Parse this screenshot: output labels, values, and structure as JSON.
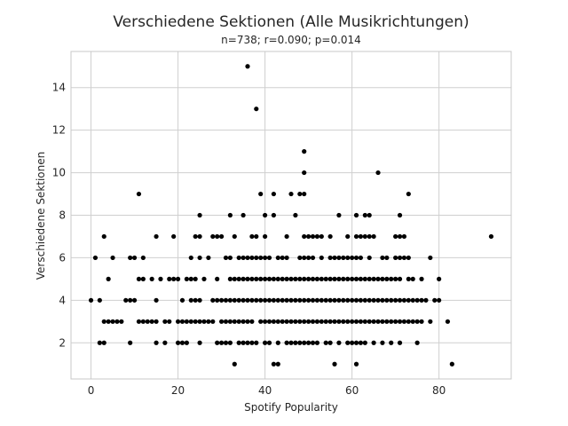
{
  "chart_data": {
    "type": "scatter",
    "title": "Verschiedene Sektionen (Alle Musikrichtungen)",
    "subtitle": "n=738; r=0.090; p=0.014",
    "xlabel": "Spotify Popularity",
    "ylabel": "Verschiedene Sektionen",
    "xlim": [
      -4.6,
      96.6
    ],
    "ylim": [
      0.3,
      15.7
    ],
    "xticks": [
      0,
      20,
      40,
      60,
      80
    ],
    "yticks": [
      2,
      4,
      6,
      8,
      10,
      12,
      14
    ],
    "grid": true,
    "point_color": "#000000",
    "points": [
      [
        0,
        4
      ],
      [
        1,
        6
      ],
      [
        2,
        4
      ],
      [
        2,
        2
      ],
      [
        3,
        2
      ],
      [
        3,
        7
      ],
      [
        3,
        3
      ],
      [
        4,
        5
      ],
      [
        4,
        3
      ],
      [
        5,
        6
      ],
      [
        5,
        3
      ],
      [
        6,
        3
      ],
      [
        7,
        3
      ],
      [
        8,
        4
      ],
      [
        9,
        4
      ],
      [
        9,
        6
      ],
      [
        9,
        2
      ],
      [
        10,
        4
      ],
      [
        10,
        6
      ],
      [
        11,
        9
      ],
      [
        11,
        5
      ],
      [
        11,
        3
      ],
      [
        12,
        6
      ],
      [
        12,
        5
      ],
      [
        12,
        3
      ],
      [
        13,
        3
      ],
      [
        14,
        5
      ],
      [
        14,
        3
      ],
      [
        15,
        7
      ],
      [
        15,
        4
      ],
      [
        15,
        2
      ],
      [
        15,
        3
      ],
      [
        16,
        5
      ],
      [
        17,
        3
      ],
      [
        17,
        2
      ],
      [
        18,
        3
      ],
      [
        18,
        5
      ],
      [
        19,
        7
      ],
      [
        19,
        5
      ],
      [
        20,
        5
      ],
      [
        20,
        3
      ],
      [
        20,
        2
      ],
      [
        21,
        4
      ],
      [
        21,
        3
      ],
      [
        21,
        2
      ],
      [
        22,
        5
      ],
      [
        22,
        3
      ],
      [
        22,
        2
      ],
      [
        23,
        6
      ],
      [
        23,
        5
      ],
      [
        23,
        4
      ],
      [
        23,
        3
      ],
      [
        24,
        7
      ],
      [
        24,
        5
      ],
      [
        24,
        3
      ],
      [
        24,
        4
      ],
      [
        25,
        8
      ],
      [
        25,
        7
      ],
      [
        25,
        6
      ],
      [
        25,
        4
      ],
      [
        25,
        3
      ],
      [
        25,
        2
      ],
      [
        26,
        5
      ],
      [
        26,
        3
      ],
      [
        27,
        6
      ],
      [
        27,
        3
      ],
      [
        28,
        7
      ],
      [
        28,
        4
      ],
      [
        28,
        3
      ],
      [
        29,
        7
      ],
      [
        29,
        5
      ],
      [
        29,
        4
      ],
      [
        29,
        2
      ],
      [
        30,
        7
      ],
      [
        30,
        4
      ],
      [
        30,
        3
      ],
      [
        30,
        2
      ],
      [
        31,
        6
      ],
      [
        31,
        4
      ],
      [
        31,
        3
      ],
      [
        31,
        2
      ],
      [
        32,
        8
      ],
      [
        32,
        6
      ],
      [
        32,
        5
      ],
      [
        32,
        4
      ],
      [
        32,
        3
      ],
      [
        32,
        2
      ],
      [
        33,
        7
      ],
      [
        33,
        5
      ],
      [
        33,
        4
      ],
      [
        33,
        3
      ],
      [
        33,
        1
      ],
      [
        34,
        6
      ],
      [
        34,
        5
      ],
      [
        34,
        4
      ],
      [
        34,
        3
      ],
      [
        34,
        2
      ],
      [
        35,
        8
      ],
      [
        35,
        6
      ],
      [
        35,
        5
      ],
      [
        35,
        4
      ],
      [
        35,
        3
      ],
      [
        35,
        2
      ],
      [
        36,
        15
      ],
      [
        36,
        6
      ],
      [
        36,
        5
      ],
      [
        36,
        4
      ],
      [
        36,
        3
      ],
      [
        36,
        2
      ],
      [
        37,
        7
      ],
      [
        37,
        6
      ],
      [
        37,
        5
      ],
      [
        37,
        4
      ],
      [
        37,
        3
      ],
      [
        37,
        2
      ],
      [
        38,
        13
      ],
      [
        38,
        7
      ],
      [
        38,
        6
      ],
      [
        38,
        5
      ],
      [
        38,
        4
      ],
      [
        38,
        2
      ],
      [
        39,
        9
      ],
      [
        39,
        6
      ],
      [
        39,
        5
      ],
      [
        39,
        4
      ],
      [
        39,
        3
      ],
      [
        40,
        8
      ],
      [
        40,
        7
      ],
      [
        40,
        6
      ],
      [
        40,
        5
      ],
      [
        40,
        4
      ],
      [
        40,
        3
      ],
      [
        40,
        2
      ],
      [
        41,
        6
      ],
      [
        41,
        5
      ],
      [
        41,
        4
      ],
      [
        41,
        3
      ],
      [
        41,
        2
      ],
      [
        42,
        9
      ],
      [
        42,
        8
      ],
      [
        42,
        5
      ],
      [
        42,
        4
      ],
      [
        42,
        3
      ],
      [
        42,
        1
      ],
      [
        43,
        6
      ],
      [
        43,
        5
      ],
      [
        43,
        4
      ],
      [
        43,
        3
      ],
      [
        43,
        2
      ],
      [
        43,
        1
      ],
      [
        44,
        6
      ],
      [
        44,
        5
      ],
      [
        44,
        4
      ],
      [
        44,
        3
      ],
      [
        45,
        7
      ],
      [
        45,
        6
      ],
      [
        45,
        5
      ],
      [
        45,
        4
      ],
      [
        45,
        3
      ],
      [
        45,
        2
      ],
      [
        46,
        9
      ],
      [
        46,
        5
      ],
      [
        46,
        4
      ],
      [
        46,
        3
      ],
      [
        46,
        2
      ],
      [
        47,
        8
      ],
      [
        47,
        5
      ],
      [
        47,
        4
      ],
      [
        47,
        3
      ],
      [
        47,
        2
      ],
      [
        48,
        9
      ],
      [
        48,
        6
      ],
      [
        48,
        5
      ],
      [
        48,
        4
      ],
      [
        48,
        3
      ],
      [
        48,
        2
      ],
      [
        49,
        11
      ],
      [
        49,
        10
      ],
      [
        49,
        9
      ],
      [
        49,
        7
      ],
      [
        49,
        6
      ],
      [
        49,
        5
      ],
      [
        49,
        4
      ],
      [
        49,
        3
      ],
      [
        49,
        2
      ],
      [
        50,
        7
      ],
      [
        50,
        6
      ],
      [
        50,
        5
      ],
      [
        50,
        4
      ],
      [
        50,
        3
      ],
      [
        50,
        2
      ],
      [
        51,
        7
      ],
      [
        51,
        6
      ],
      [
        51,
        5
      ],
      [
        51,
        4
      ],
      [
        51,
        3
      ],
      [
        51,
        2
      ],
      [
        52,
        7
      ],
      [
        52,
        5
      ],
      [
        52,
        4
      ],
      [
        52,
        3
      ],
      [
        52,
        2
      ],
      [
        53,
        7
      ],
      [
        53,
        6
      ],
      [
        53,
        5
      ],
      [
        53,
        4
      ],
      [
        53,
        3
      ],
      [
        54,
        5
      ],
      [
        54,
        4
      ],
      [
        54,
        3
      ],
      [
        54,
        2
      ],
      [
        55,
        7
      ],
      [
        55,
        6
      ],
      [
        55,
        5
      ],
      [
        55,
        4
      ],
      [
        55,
        3
      ],
      [
        55,
        2
      ],
      [
        56,
        6
      ],
      [
        56,
        5
      ],
      [
        56,
        4
      ],
      [
        56,
        3
      ],
      [
        56,
        1
      ],
      [
        57,
        8
      ],
      [
        57,
        6
      ],
      [
        57,
        5
      ],
      [
        57,
        4
      ],
      [
        57,
        3
      ],
      [
        57,
        2
      ],
      [
        58,
        6
      ],
      [
        58,
        5
      ],
      [
        58,
        4
      ],
      [
        58,
        3
      ],
      [
        59,
        7
      ],
      [
        59,
        6
      ],
      [
        59,
        5
      ],
      [
        59,
        4
      ],
      [
        59,
        3
      ],
      [
        59,
        2
      ],
      [
        60,
        6
      ],
      [
        60,
        5
      ],
      [
        60,
        4
      ],
      [
        60,
        3
      ],
      [
        60,
        2
      ],
      [
        61,
        8
      ],
      [
        61,
        7
      ],
      [
        61,
        6
      ],
      [
        61,
        5
      ],
      [
        61,
        4
      ],
      [
        61,
        3
      ],
      [
        61,
        2
      ],
      [
        61,
        1
      ],
      [
        62,
        7
      ],
      [
        62,
        6
      ],
      [
        62,
        5
      ],
      [
        62,
        4
      ],
      [
        62,
        3
      ],
      [
        62,
        2
      ],
      [
        63,
        8
      ],
      [
        63,
        7
      ],
      [
        63,
        5
      ],
      [
        63,
        4
      ],
      [
        63,
        3
      ],
      [
        63,
        2
      ],
      [
        64,
        8
      ],
      [
        64,
        7
      ],
      [
        64,
        6
      ],
      [
        64,
        5
      ],
      [
        64,
        4
      ],
      [
        64,
        3
      ],
      [
        65,
        7
      ],
      [
        65,
        5
      ],
      [
        65,
        4
      ],
      [
        65,
        3
      ],
      [
        65,
        2
      ],
      [
        66,
        10
      ],
      [
        66,
        5
      ],
      [
        66,
        4
      ],
      [
        66,
        3
      ],
      [
        67,
        6
      ],
      [
        67,
        5
      ],
      [
        67,
        4
      ],
      [
        67,
        3
      ],
      [
        67,
        2
      ],
      [
        68,
        6
      ],
      [
        68,
        5
      ],
      [
        68,
        4
      ],
      [
        68,
        3
      ],
      [
        69,
        5
      ],
      [
        69,
        4
      ],
      [
        69,
        3
      ],
      [
        69,
        2
      ],
      [
        70,
        7
      ],
      [
        70,
        6
      ],
      [
        70,
        5
      ],
      [
        70,
        4
      ],
      [
        70,
        3
      ],
      [
        71,
        8
      ],
      [
        71,
        7
      ],
      [
        71,
        6
      ],
      [
        71,
        5
      ],
      [
        71,
        4
      ],
      [
        71,
        3
      ],
      [
        71,
        2
      ],
      [
        72,
        7
      ],
      [
        72,
        6
      ],
      [
        72,
        4
      ],
      [
        72,
        3
      ],
      [
        73,
        9
      ],
      [
        73,
        6
      ],
      [
        73,
        5
      ],
      [
        73,
        4
      ],
      [
        73,
        3
      ],
      [
        74,
        5
      ],
      [
        74,
        4
      ],
      [
        74,
        3
      ],
      [
        75,
        4
      ],
      [
        75,
        3
      ],
      [
        75,
        2
      ],
      [
        76,
        5
      ],
      [
        76,
        4
      ],
      [
        76,
        3
      ],
      [
        77,
        4
      ],
      [
        78,
        6
      ],
      [
        78,
        3
      ],
      [
        79,
        4
      ],
      [
        80,
        5
      ],
      [
        80,
        4
      ],
      [
        82,
        3
      ],
      [
        83,
        1
      ],
      [
        92,
        7
      ]
    ]
  }
}
